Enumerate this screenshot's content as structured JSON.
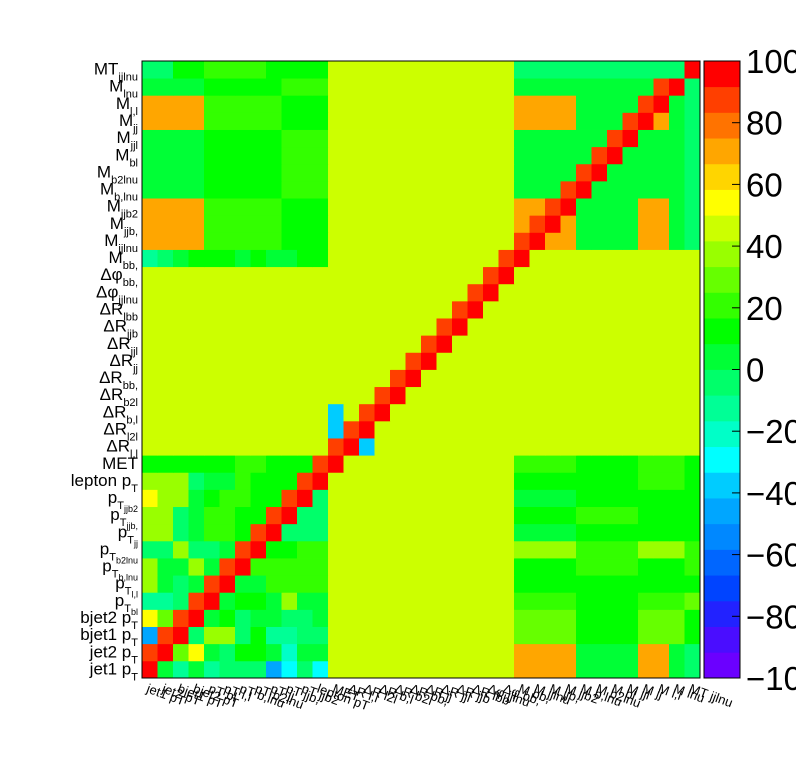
{
  "chart_data": {
    "type": "heatmap",
    "title": "",
    "xlabel": "",
    "ylabel": "",
    "z_range": [
      -100,
      100
    ],
    "z_ticks": [
      "100",
      "80",
      "60",
      "40",
      "20",
      "0",
      "−20",
      "−40",
      "−60",
      "−80",
      "−100"
    ],
    "palette": [
      "#6b00ff",
      "#4a0dff",
      "#2222ff",
      "#0044ff",
      "#0066ff",
      "#0088ff",
      "#00a6ff",
      "#00ccff",
      "#00ffff",
      "#00ffc8",
      "#00ff96",
      "#00ff6a",
      "#00ff36",
      "#00ff00",
      "#33ff00",
      "#66ff00",
      "#99ff00",
      "#ccff00",
      "#ffff00",
      "#ffd500",
      "#ffa600",
      "#ff7300",
      "#ff3f00",
      "#ff0000"
    ],
    "variables": [
      "jet1 pT",
      "jet2 pT",
      "bjet1 pT",
      "bjet2 pT",
      "pT bl",
      "pT l,l",
      "pT b,lnu",
      "pT b2lnu",
      "pT jj",
      "pT jjb1",
      "pT jjb2",
      "lepton pT",
      "MET",
      "ΔR l,l",
      "ΔR l2l",
      "ΔR b,l",
      "ΔR b2l",
      "ΔR bb1",
      "ΔR jj",
      "ΔR jjl",
      "ΔR jjb",
      "ΔR lbb",
      "Δφ jjlnu",
      "Δφ bb1",
      "M bb1",
      "M jjlnu",
      "M jjb1",
      "M jjb2",
      "M b,lnu",
      "M b2lnu",
      "M bl",
      "M jjl",
      "M jj",
      "M l,l",
      "M lnu",
      "MT jjlnu"
    ],
    "y_labels": [
      {
        "main": "jet1 p",
        "sub": "T"
      },
      {
        "main": "jet2 p",
        "sub": "T"
      },
      {
        "main": "bjet1 p",
        "sub": "T"
      },
      {
        "main": "bjet2 p",
        "sub": "T"
      },
      {
        "main": "p",
        "sub": "T",
        "sub2": "bl"
      },
      {
        "main": "p",
        "sub": "T",
        "sub2": "l,l"
      },
      {
        "main": "p",
        "sub": "T",
        "sub2": "b,lnu"
      },
      {
        "main": "p",
        "sub": "T",
        "sub2": "b2lnu"
      },
      {
        "main": "p",
        "sub": "T",
        "sub2": "jj"
      },
      {
        "main": "p",
        "sub": "T",
        "sub2": "jjb,"
      },
      {
        "main": "p",
        "sub": "T",
        "sub2": "jjb2"
      },
      {
        "main": "lepton p",
        "sub": "T"
      },
      {
        "main": "MET",
        "sub": ""
      },
      {
        "main": "ΔR",
        "sub": "l,l"
      },
      {
        "main": "ΔR",
        "sub": "l2l"
      },
      {
        "main": "ΔR",
        "sub": "b,l"
      },
      {
        "main": "ΔR",
        "sub": "b2l"
      },
      {
        "main": "ΔR",
        "sub": "bb,"
      },
      {
        "main": "ΔR",
        "sub": "jj"
      },
      {
        "main": "ΔR",
        "sub": "jjl"
      },
      {
        "main": "ΔR",
        "sub": "jjb"
      },
      {
        "main": "ΔR",
        "sub": "lbb"
      },
      {
        "main": "Δφ",
        "sub": "jjlnu"
      },
      {
        "main": "Δφ",
        "sub": "bb,"
      },
      {
        "main": "M",
        "sub": "bb,"
      },
      {
        "main": "M",
        "sub": "jjlnu"
      },
      {
        "main": "M",
        "sub": "jjb,"
      },
      {
        "main": "M",
        "sub": "jjb2"
      },
      {
        "main": "M",
        "sub": "b,lnu"
      },
      {
        "main": "M",
        "sub": "b2lnu"
      },
      {
        "main": "M",
        "sub": "bl"
      },
      {
        "main": "M",
        "sub": "jjl"
      },
      {
        "main": "M",
        "sub": "jj"
      },
      {
        "main": "M",
        "sub": "l,l"
      },
      {
        "main": "M",
        "sub": "lnu"
      },
      {
        "main": "MT",
        "sub": "jjlnu"
      }
    ],
    "x_labels": [
      "jet1 pT",
      "jet2 pT",
      "bjet1 pT",
      "bjet2 pT",
      "pT bl",
      "pT l,l",
      "pT b,lnu",
      "pT b2lnu",
      "pT jj",
      "pT jjb,",
      "pT jjb2",
      "lepton pT",
      "MET",
      "ΔR l,l",
      "ΔR l2l",
      "ΔR b,l",
      "ΔR b2l",
      "ΔR bb,",
      "ΔR jj",
      "ΔR jjl",
      "ΔR jjb",
      "ΔR lbb",
      "Δφ jjlnu",
      "Δφ bb,",
      "M bb,",
      "M jjlnu",
      "M jjb,",
      "M jjb2",
      "M b,lnu",
      "M b2lnu",
      "M bl",
      "M jjl",
      "M jj",
      "M l,l",
      "M lnu",
      "MT jjlnu"
    ],
    "rows": [
      "WhIfIKKKEGJGSSSSSSSSSSSSVVVVMMMMVVMK",
      "WDQTLKNNLHMLSSSSSSSSSSSSVVVVMMMMVVMK",
      "EWTKRRKOIIKKSSSSSSSSSSSSQQQQNNNNQQQO",
      "TQWKLOKLLKKLSSSSSSSSSSSSQQQQNNNNQQQO",
      "IIKWKLOOLRLLSSSSSSSSSSSSPPPPOOOOPPPQ",
      "RLKLWKLLPPPPSSSSSSSSSSSSNNNNOOOONNNO",
      "RLLRLWPPPPPPSSSSSSSSSSSSOOOOPPPPOOOP",
      "KKRKKLWPNNPPSSSSSSSSSSSSRRRRPPPPRRRP",
      "RRKLPPOWIJKKSSSSSSSSSSSSMMMMOOOONNNN",
      "RRKLPPOOWJKKSSSSSSSSSSSSNNNNPPPPNNNN",
      "TRRLOPPONWIJSSSSSSSSSSSSMMMMOOOONNNN",
      "RRRKLLPONNWQSSSSSSSSSSSSNNNNOOOOPPPO",
      "OONNOOPPNNOWSSSSSSSSSSSSPPPPOOOOPPPO",
      "SSSSSSSSSSSSWFFSSSSSSSSSSSSSSSSSSSSS",
      "SSSSSSSSSSSSFWSSSSSSSSSSSSSSSSSSSSSS",
      "SSSSSSSSSSSSFSWSSSSSSSSSSSSSSSSSSSSS",
      "SSSSSSSSSSSSSSSWSSSSSSSSSSSSSSSSSSSS",
      "SSSSSSSSSSSSSSSSWSSSSSSSSSSSSSSSSSSS",
      "SSSSSSSSSSSSSSSSSWSSSSSSSSSSSSSSSSSS",
      "SSSSSSSSSSSSSSSSSSWSSSSSSSSSSSSSSSSS",
      "SSSSSSSSSSSSSSSSSSSWSSSSSSSSSSSSSSSS",
      "SSSSSSSSSSSSSSSSSSSSWSSSSSSSSSSSSSSS",
      "SSSSSSSSSSSSSSSSSSSSSWSSSSSSSSSSSSSS",
      "SSSSSSSSSSSSSSSSSSSSSSWSSSSSSSSSSSSS",
      "IJLNONLNMMNNSSSSSSSSSSSWSSSSSSSSSSSS",
      "VVVVPPPPPNNNSSSSSSSSSSSSWVVVMMMMVVMK",
      "VVVVPPPPPNNNSSSSSSSSSSSSVWVVMMMMVVMK",
      "VVVVPPPPPNNNSSSSSSSSSSSSVVWVMMMMVVMK",
      "MMMMOOOOOPPPSSSSSSSSSSSSMMMWMMMMMMMK",
      "MMMMOOOOOPPPSSSSSSSSSSSSMMMMWMMMMMMK",
      "MMMMOOOOOPPPSSSSSSSSSSSSMMMMMWMMMMMK",
      "MMMMOOOOOPPPSSSSSSSSSSSSMMMMMMWMMMMK",
      "VVVVPPPPPNNNSSSSSSSSSSSSVVVVMMMWVVMK",
      "VVVVPPPPPNNNSSSSSSSSSSSSVVVVMMMMWVMK",
      "MMMMOOOOOPPPSSSSSSSSSSSSMMMMMMMMMWMK",
      "KKOOPPPPNNNNSSSSSSSSSSSSKKKKKKKKKKKW"
    ]
  }
}
